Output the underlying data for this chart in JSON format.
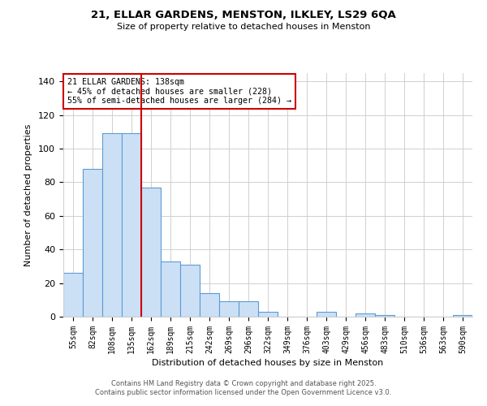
{
  "title": "21, ELLAR GARDENS, MENSTON, ILKLEY, LS29 6QA",
  "subtitle": "Size of property relative to detached houses in Menston",
  "xlabel": "Distribution of detached houses by size in Menston",
  "ylabel": "Number of detached properties",
  "categories": [
    "55sqm",
    "82sqm",
    "108sqm",
    "135sqm",
    "162sqm",
    "189sqm",
    "215sqm",
    "242sqm",
    "269sqm",
    "296sqm",
    "322sqm",
    "349sqm",
    "376sqm",
    "403sqm",
    "429sqm",
    "456sqm",
    "483sqm",
    "510sqm",
    "536sqm",
    "563sqm",
    "590sqm"
  ],
  "values": [
    26,
    88,
    109,
    109,
    77,
    33,
    31,
    14,
    9,
    9,
    3,
    0,
    0,
    3,
    0,
    2,
    1,
    0,
    0,
    0,
    1
  ],
  "bar_color": "#cce0f5",
  "bar_edge_color": "#5b9bd5",
  "marker_color": "#cc0000",
  "annotation_title": "21 ELLAR GARDENS: 138sqm",
  "annotation_line2": "← 45% of detached houses are smaller (228)",
  "annotation_line3": "55% of semi-detached houses are larger (284) →",
  "annotation_box_color": "#ffffff",
  "annotation_box_edge_color": "#cc0000",
  "ylim": [
    0,
    145
  ],
  "yticks": [
    0,
    20,
    40,
    60,
    80,
    100,
    120,
    140
  ],
  "footer_line1": "Contains HM Land Registry data © Crown copyright and database right 2025.",
  "footer_line2": "Contains public sector information licensed under the Open Government Licence v3.0.",
  "background_color": "#ffffff",
  "grid_color": "#d0d0d0"
}
